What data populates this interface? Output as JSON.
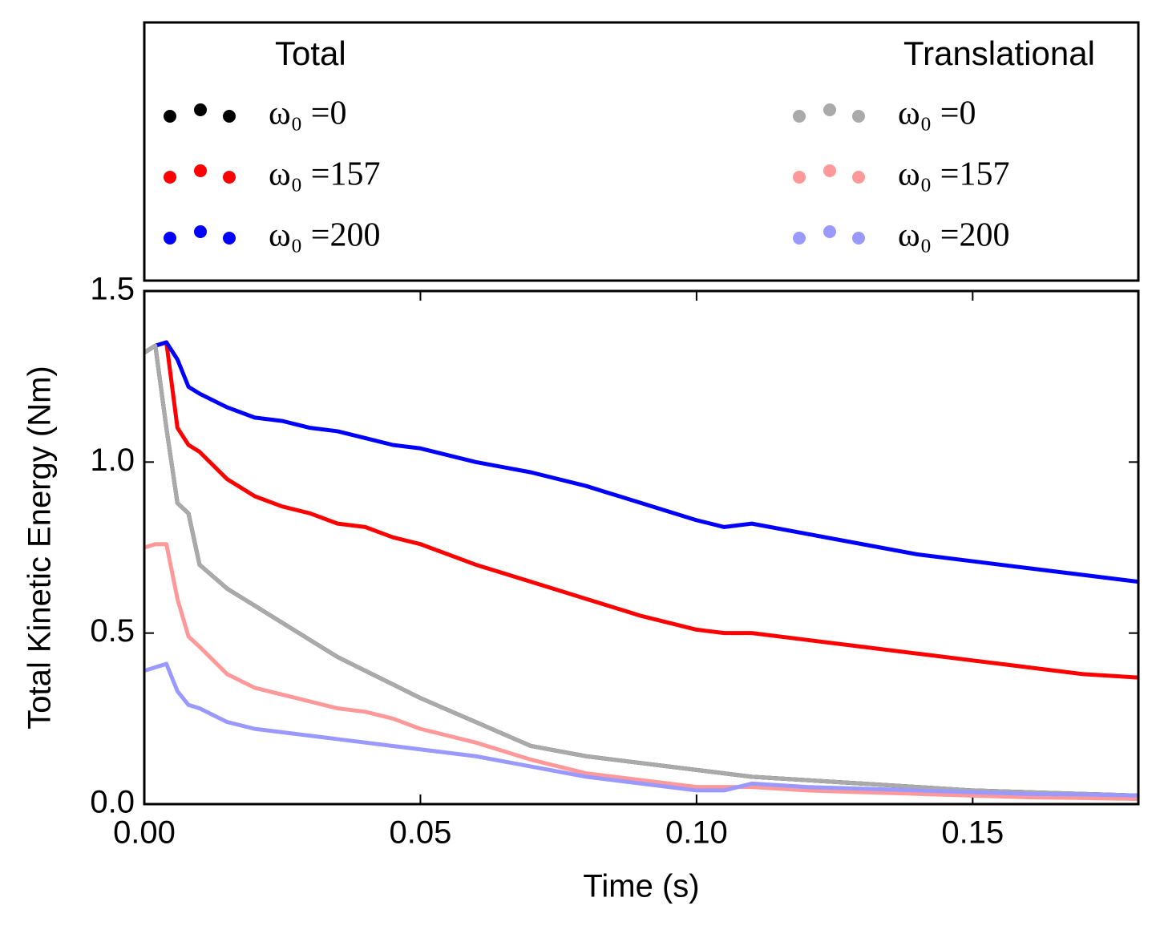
{
  "chart_data": {
    "type": "line",
    "xlabel": "Time (s)",
    "ylabel": "Total Kinetic Energy (Nm)",
    "legend_titles": [
      "Total",
      "Translational"
    ],
    "x": [
      0,
      0.002,
      0.004,
      0.006,
      0.008,
      0.01,
      0.015,
      0.02,
      0.025,
      0.03,
      0.035,
      0.04,
      0.045,
      0.05,
      0.06,
      0.07,
      0.08,
      0.09,
      0.1,
      0.105,
      0.11,
      0.12,
      0.13,
      0.14,
      0.15,
      0.16,
      0.17,
      0.18
    ],
    "series": [
      {
        "name": "ω₀ =0",
        "color": "#000000",
        "values": [
          1.32,
          1.34,
          1.1,
          0.88,
          0.85,
          0.7,
          0.63,
          0.58,
          0.53,
          0.48,
          0.43,
          0.39,
          0.35,
          0.31,
          0.24,
          0.17,
          0.14,
          0.12,
          0.1,
          0.09,
          0.08,
          0.07,
          0.06,
          0.05,
          0.04,
          0.035,
          0.03,
          0.025
        ]
      },
      {
        "name": "ω₀ =157",
        "color": "#ff0000",
        "values": [
          1.32,
          1.34,
          1.35,
          1.1,
          1.05,
          1.03,
          0.95,
          0.9,
          0.87,
          0.85,
          0.82,
          0.81,
          0.78,
          0.76,
          0.7,
          0.65,
          0.6,
          0.55,
          0.51,
          0.5,
          0.5,
          0.48,
          0.46,
          0.44,
          0.42,
          0.4,
          0.38,
          0.37
        ]
      },
      {
        "name": "ω₀ =200",
        "color": "#0000ff",
        "values": [
          1.32,
          1.34,
          1.35,
          1.3,
          1.22,
          1.2,
          1.16,
          1.13,
          1.12,
          1.1,
          1.09,
          1.07,
          1.05,
          1.04,
          1.0,
          0.97,
          0.93,
          0.88,
          0.83,
          0.81,
          0.82,
          0.79,
          0.76,
          0.73,
          0.71,
          0.69,
          0.67,
          0.65
        ]
      },
      {
        "name": "ω₀ =0",
        "color": "#aaaaaa",
        "values": [
          1.32,
          1.34,
          1.1,
          0.88,
          0.85,
          0.7,
          0.63,
          0.58,
          0.53,
          0.48,
          0.43,
          0.39,
          0.35,
          0.31,
          0.24,
          0.17,
          0.14,
          0.12,
          0.1,
          0.09,
          0.08,
          0.07,
          0.06,
          0.05,
          0.04,
          0.035,
          0.03,
          0.025
        ]
      },
      {
        "name": "ω₀ =157",
        "color": "#ff9999",
        "values": [
          0.75,
          0.76,
          0.76,
          0.6,
          0.49,
          0.46,
          0.38,
          0.34,
          0.32,
          0.3,
          0.28,
          0.27,
          0.25,
          0.22,
          0.18,
          0.13,
          0.09,
          0.07,
          0.05,
          0.05,
          0.05,
          0.04,
          0.035,
          0.03,
          0.025,
          0.02,
          0.018,
          0.015
        ]
      },
      {
        "name": "ω₀ =200",
        "color": "#9999ff",
        "values": [
          0.39,
          0.4,
          0.41,
          0.33,
          0.29,
          0.28,
          0.24,
          0.22,
          0.21,
          0.2,
          0.19,
          0.18,
          0.17,
          0.16,
          0.14,
          0.11,
          0.08,
          0.06,
          0.04,
          0.04,
          0.06,
          0.05,
          0.045,
          0.04,
          0.035,
          0.03,
          0.028,
          0.025
        ]
      }
    ],
    "xlim": [
      0,
      0.18
    ],
    "ylim": [
      0,
      1.5
    ],
    "xticks": [
      {
        "value": 0,
        "label": "0.00"
      },
      {
        "value": 0.05,
        "label": "0.05"
      },
      {
        "value": 0.1,
        "label": "0.10"
      },
      {
        "value": 0.15,
        "label": "0.15"
      }
    ],
    "yticks": [
      {
        "value": 0,
        "label": "0.0"
      },
      {
        "value": 0.5,
        "label": "0.5"
      },
      {
        "value": 1,
        "label": "1.0"
      },
      {
        "value": 1.5,
        "label": "1.5"
      }
    ]
  }
}
